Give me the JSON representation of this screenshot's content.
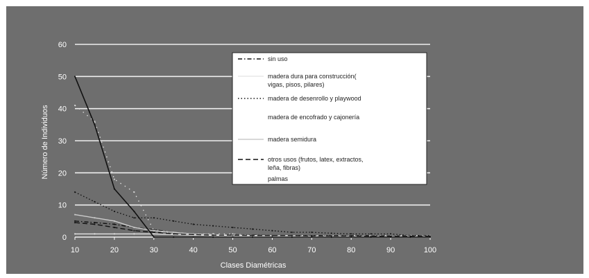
{
  "chart_data": {
    "type": "line",
    "title": "",
    "xlabel": "Clases Diamétricas",
    "ylabel": "Número de Individuos",
    "xlim": [
      10,
      100
    ],
    "ylim": [
      0,
      60
    ],
    "x_ticks": [
      "10",
      "20",
      "30",
      "40",
      "50",
      "60",
      "70",
      "80",
      "90",
      "100"
    ],
    "y_ticks": [
      "0",
      "10",
      "20",
      "30",
      "40",
      "50",
      "60"
    ],
    "grid": true,
    "legend_position": "top-right",
    "x": [
      10,
      15,
      20,
      25,
      30,
      35,
      40,
      45,
      50,
      55,
      60,
      65,
      70,
      75,
      80,
      85,
      90,
      95,
      100
    ],
    "series": [
      {
        "name": "sin uso",
        "style": "dashdot",
        "color": "#111111",
        "values": [
          5,
          4.5,
          4,
          3,
          2.3,
          1.5,
          1,
          0.8,
          0.6,
          0.6,
          0.5,
          0.5,
          0.5,
          0.4,
          0.4,
          0.4,
          0.3,
          0.3,
          0.3
        ]
      },
      {
        "name": "madera dura para construcción( vigas, pisos, pilares)",
        "style": "solid",
        "color": "#e8e8e8",
        "values": [
          1,
          1,
          1,
          1,
          1,
          0.8,
          0.6,
          0.5,
          0.4,
          0.3,
          0.3,
          0.3,
          0.2,
          0.2,
          0.2,
          0.2,
          0.2,
          0.2,
          0.2
        ]
      },
      {
        "name": "madera de desenrollo y playwood",
        "style": "dotted",
        "color": "#111111",
        "values": [
          14,
          11,
          8,
          6,
          6,
          5,
          4,
          3.5,
          3,
          2.5,
          2,
          1.5,
          1.5,
          1.2,
          1,
          1,
          1,
          0.5,
          0.5
        ]
      },
      {
        "name": "madera de encofrado y cajonería",
        "style": "dotted-sparse",
        "color": "#dddddd",
        "values": [
          41,
          36,
          18,
          14,
          2,
          1,
          1,
          1,
          1,
          0.5,
          0.5,
          0.5,
          0.5,
          0.5,
          0.5,
          0.5,
          0.5,
          0.5,
          0.5
        ]
      },
      {
        "name": "madera semidura",
        "style": "solid",
        "color": "#cccccc",
        "values": [
          7,
          6,
          5,
          3,
          2,
          1.5,
          1,
          0.8,
          0.6,
          0.5,
          0.4,
          0.4,
          0.3,
          0.3,
          0.3,
          0.2,
          0.2,
          0.2,
          0.2
        ]
      },
      {
        "name": "otros usos (frutos, latex, extractos, leña, fibras)",
        "style": "dashed",
        "color": "#111111",
        "values": [
          4.5,
          4,
          3,
          2,
          1.5,
          1,
          0.8,
          0.6,
          0.6,
          0.5,
          0.5,
          0.5,
          0.4,
          0.4,
          0.4,
          0.3,
          0.3,
          0.3,
          0.3
        ]
      },
      {
        "name": "palmas",
        "style": "solid",
        "color": "#111111",
        "values": [
          50,
          35,
          15,
          8,
          0,
          0,
          0,
          0,
          0,
          0,
          0,
          0,
          0,
          0,
          0,
          0,
          0,
          0,
          0
        ]
      }
    ]
  },
  "legend": {
    "items": [
      {
        "label": "sin uso",
        "style": "dashdot",
        "color": "#111111"
      },
      {
        "label": "madera dura para construcción(",
        "label2": "vigas, pisos, pilares)",
        "style": "solid",
        "color": "#e8e8e8"
      },
      {
        "label": "madera de desenrollo y playwood",
        "style": "dotted",
        "color": "#111111"
      },
      {
        "label": "madera de encofrado y cajonería",
        "style": "none",
        "color": "#dddddd"
      },
      {
        "label": "madera semidura",
        "style": "solid",
        "color": "#cccccc"
      },
      {
        "label": "otros usos (frutos, latex, extractos,",
        "label2": "leña, fibras)",
        "style": "dashed",
        "color": "#111111"
      },
      {
        "label": "palmas",
        "style": "none",
        "color": "#111111"
      }
    ]
  },
  "colors": {
    "background": "#6e6e6e",
    "gridline": "#eeeeee",
    "legend_bg": "#ffffff"
  }
}
